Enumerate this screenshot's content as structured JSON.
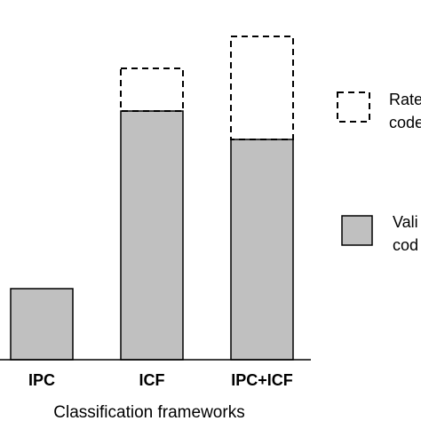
{
  "chart_data": {
    "type": "bar",
    "stacked": true,
    "xlabel": "Classification frameworks",
    "ylabel": "",
    "categories": [
      "IPC",
      "ICF",
      "IPC+ICF"
    ],
    "series": [
      {
        "name": "Vali\ncod",
        "style": "solid-gray",
        "values": [
          80,
          280,
          248
        ]
      },
      {
        "name": "Rate\ncode",
        "style": "dashed-outline",
        "values": [
          0,
          48,
          116
        ]
      }
    ],
    "ylim": [
      0,
      380
    ],
    "grid": false,
    "legend": "right",
    "colors": {
      "fill": "#c0c0c0",
      "stroke": "#000000"
    }
  }
}
